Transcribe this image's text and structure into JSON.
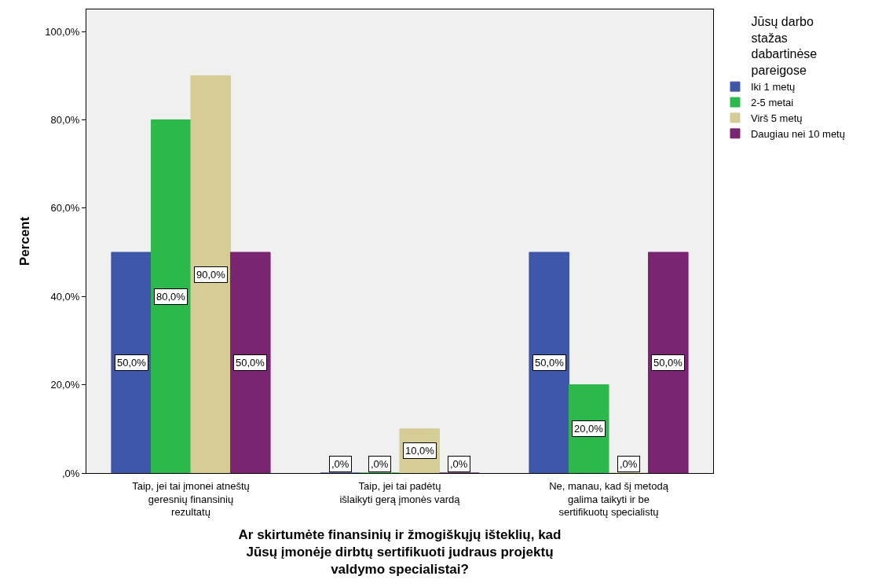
{
  "chart_data": {
    "type": "bar",
    "categories": [
      "Taip, jei tai įmonei atneštų geresnių finansinių rezultatų",
      "Taip, jei tai padėtų išlaikyti gerą įmonės vardą",
      "Ne, manau, kad šį metodą galima taikyti ir be sertifikuotų specialistų"
    ],
    "series": [
      {
        "name": "Iki 1 metų",
        "color": "#3f57a8",
        "values": [
          50.0,
          0.0,
          50.0
        ],
        "value_labels": [
          "50,0%",
          ",0%",
          "50,0%"
        ]
      },
      {
        "name": "2-5 metai",
        "color": "#2db84b",
        "values": [
          80.0,
          0.0,
          20.0
        ],
        "value_labels": [
          "80,0%",
          ",0%",
          "20,0%"
        ]
      },
      {
        "name": "Virš 5 metų",
        "color": "#d5cd95",
        "values": [
          90.0,
          10.0,
          0.0
        ],
        "value_labels": [
          "90,0%",
          "10,0%",
          ",0%"
        ]
      },
      {
        "name": "Daugiau nei 10 metų",
        "color": "#7a2571",
        "values": [
          50.0,
          0.0,
          50.0
        ],
        "value_labels": [
          "50,0%",
          ",0%",
          "50,0%"
        ]
      }
    ],
    "xlabel": "Ar skirtumėte finansinių ir žmogiškųjų išteklių, kad Jūsų įmonėje dirbtų sertifikuoti judraus projektų valdymo specialistai?",
    "ylabel": "Percent",
    "legend_title": "Jūsų darbo stažas dabartinėse pareigose",
    "ylim": [
      0,
      105
    ],
    "yticks": [
      {
        "value": 0,
        "label": ",0%"
      },
      {
        "value": 20,
        "label": "20,0%"
      },
      {
        "value": 40,
        "label": "40,0%"
      },
      {
        "value": 60,
        "label": "60,0%"
      },
      {
        "value": 80,
        "label": "80,0%"
      },
      {
        "value": 100,
        "label": "100,0%"
      }
    ],
    "grid": false,
    "legend": "top right"
  }
}
